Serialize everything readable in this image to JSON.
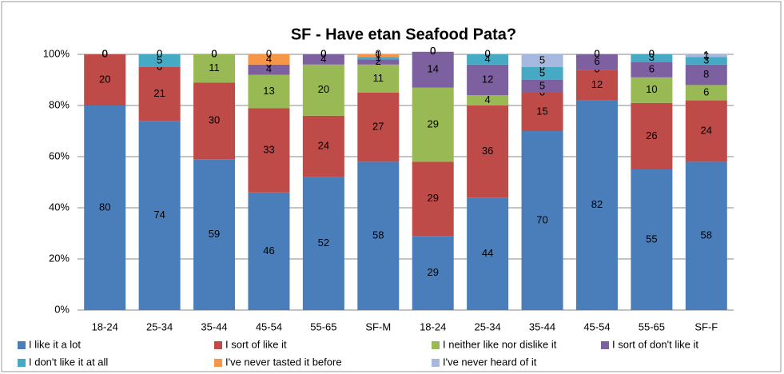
{
  "chart_data": {
    "type": "stacked_bar",
    "title": "SF - Have etan Seafood Pata?",
    "categories": [
      "18-24",
      "25-34",
      "35-44",
      "45-54",
      "55-65",
      "SF-M",
      "18-24",
      "25-34",
      "35-44",
      "45-54",
      "55-65",
      "SF-F"
    ],
    "series": [
      {
        "name": "I like it a lot",
        "color": "#4a7ebb",
        "values": [
          80,
          74,
          59,
          46,
          52,
          58,
          29,
          44,
          70,
          82,
          55,
          58
        ]
      },
      {
        "name": "I sort of like it",
        "color": "#be4b48",
        "values": [
          20,
          21,
          30,
          33,
          24,
          27,
          29,
          36,
          15,
          12,
          26,
          24
        ]
      },
      {
        "name": "I neither like nor dislike it",
        "color": "#98b954",
        "values": [
          0,
          0,
          11,
          13,
          20,
          11,
          29,
          4,
          0,
          0,
          10,
          6
        ]
      },
      {
        "name": "I sort of don't like it",
        "color": "#7d60a0",
        "values": [
          0,
          0,
          0,
          4,
          4,
          2,
          14,
          12,
          5,
          6,
          6,
          8
        ]
      },
      {
        "name": "I don't like it at all",
        "color": "#46aac5",
        "values": [
          0,
          5,
          0,
          0,
          0,
          1,
          0,
          4,
          5,
          0,
          3,
          3
        ]
      },
      {
        "name": "I've never tasted it before",
        "color": "#f79646",
        "values": [
          0,
          0,
          0,
          4,
          0,
          1,
          0,
          0,
          0,
          0,
          0,
          0
        ]
      },
      {
        "name": "I've never heard of it",
        "color": "#a5b8dd",
        "values": [
          0,
          0,
          0,
          0,
          0,
          0,
          0,
          0,
          5,
          0,
          0,
          1
        ]
      }
    ],
    "ylim": [
      0,
      100
    ],
    "yticks": [
      {
        "value": 0,
        "label": "0%"
      },
      {
        "value": 20,
        "label": "20%"
      },
      {
        "value": 40,
        "label": "40%"
      },
      {
        "value": 60,
        "label": "60%"
      },
      {
        "value": 80,
        "label": "80%"
      },
      {
        "value": 100,
        "label": "100%"
      }
    ],
    "grid": true,
    "legend": "bottom"
  }
}
